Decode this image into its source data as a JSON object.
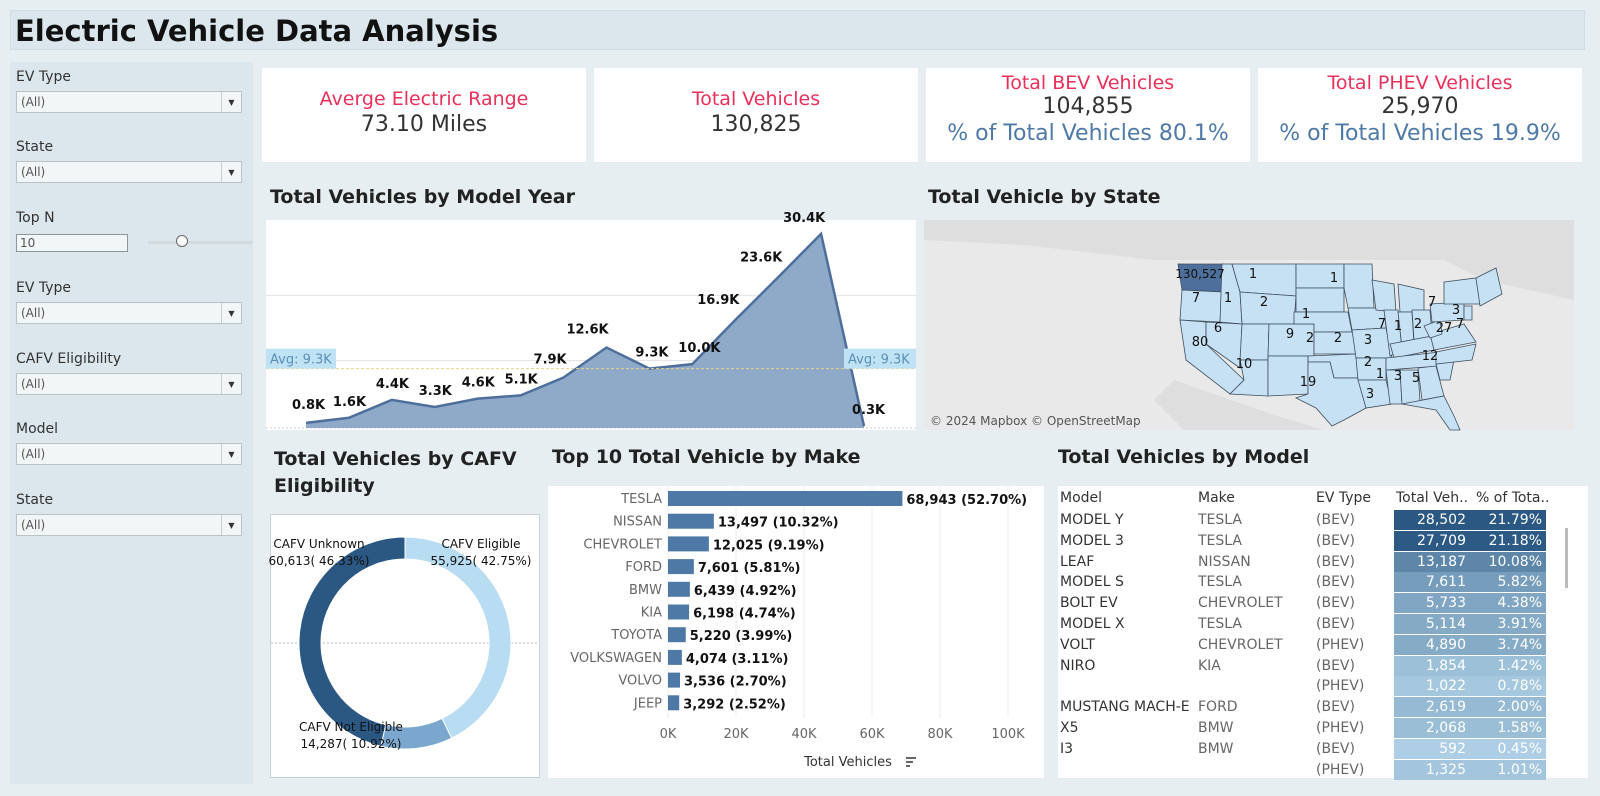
{
  "title": "Electric Vehicle Data Analysis",
  "filters": [
    {
      "label": "EV Type",
      "value": "(All)"
    },
    {
      "label": "State",
      "value": "(All)"
    },
    {
      "label": "Top N",
      "value": "10"
    },
    {
      "label": "EV Type",
      "value": "(All)"
    },
    {
      "label": "CAFV Eligibility",
      "value": "(All)"
    },
    {
      "label": "Model",
      "value": "(All)"
    },
    {
      "label": "State",
      "value": "(All)"
    }
  ],
  "kpis": {
    "range": {
      "title": "Averge Electric Range",
      "value": "73.10 Miles"
    },
    "total": {
      "title": "Total Vehicles",
      "value": "130,825"
    },
    "bev": {
      "title": "Total BEV Vehicles",
      "value": "104,855",
      "pct": "% of Total Vehicles 80.1%"
    },
    "phev": {
      "title": "Total PHEV Vehicles",
      "value": "25,970",
      "pct": "% of Total Vehicles 19.9%"
    }
  },
  "colors": {
    "accent_red": "#e8305a",
    "accent_blue": "#4e79a7",
    "area_fill": "#8faac8",
    "line": "#4e6f9c",
    "bar": "#4e79a7",
    "donut_dark": "#2b5783",
    "donut_mid": "#7ba7cf",
    "donut_light": "#b8dcf2",
    "map_state": "#c6e1f4",
    "map_wa": "#4e6f9c"
  },
  "model_year_title": "Total Vehicles by Model Year",
  "state_title": "Total Vehicle by State",
  "cafv_title_line1": "Total Vehicles by CAFV",
  "cafv_title_line2": "Eligibility",
  "make_title": "Top 10 Total Vehicle by Make",
  "model_title": "Total Vehicles by Model",
  "map_credit": "© 2024 Mapbox © OpenStreetMap",
  "chart_data": [
    {
      "type": "area",
      "title": "Total Vehicles by Model Year",
      "values": [
        800,
        1600,
        4400,
        3300,
        4600,
        5100,
        7900,
        12600,
        9300,
        10000,
        16900,
        23600,
        30400,
        300
      ],
      "data_labels": [
        "0.8K",
        "1.6K",
        "4.4K",
        "3.3K",
        "4.6K",
        "5.1K",
        "7.9K",
        "12.6K",
        "9.3K",
        "10.0K",
        "16.9K",
        "23.6K",
        "30.4K",
        "0.3K"
      ],
      "avg_value": 9300,
      "avg_label": "Avg: 9.3K",
      "ylim": [
        0,
        31000
      ]
    },
    {
      "type": "bar",
      "title": "Top 10 Total Vehicle by Make",
      "categories": [
        "TESLA",
        "NISSAN",
        "CHEVROLET",
        "FORD",
        "BMW",
        "KIA",
        "TOYOTA",
        "VOLKSWAGEN",
        "VOLVO",
        "JEEP"
      ],
      "values": [
        68943,
        13497,
        12025,
        7601,
        6439,
        6198,
        5220,
        4074,
        3536,
        3292
      ],
      "data_labels": [
        "68,943 (52.70%)",
        "13,497 (10.32%)",
        "12,025 (9.19%)",
        "7,601 (5.81%)",
        "6,439 (4.92%)",
        "6,198 (4.74%)",
        "5,220 (3.99%)",
        "4,074 (3.11%)",
        "3,536 (2.70%)",
        "3,292 (2.52%)"
      ],
      "xlabel": "Total Vehicles",
      "xticks": [
        "0K",
        "20K",
        "40K",
        "60K",
        "80K",
        "100K"
      ],
      "xlim": [
        0,
        100000
      ]
    },
    {
      "type": "pie",
      "title": "Total Vehicles by CAFV Eligibility",
      "slices": [
        {
          "name": "CAFV Eligible",
          "value": 55925,
          "label": "55,925( 42.75%)"
        },
        {
          "name": "CAFV Not Eligible",
          "value": 14287,
          "label": "14,287( 10.92%)"
        },
        {
          "name": "CAFV Unknown",
          "value": 60613,
          "label": "60,613( 46.33%)"
        }
      ]
    },
    {
      "type": "table",
      "title": "Total Vehicles by Model",
      "columns": [
        "Model",
        "Make",
        "EV Type",
        "Total Veh..",
        "% of Tota.."
      ],
      "rows": [
        {
          "model": "MODEL Y",
          "make": "TESLA",
          "ev": "(BEV)",
          "total": "28,502",
          "pct": "21.79%",
          "value": 28502
        },
        {
          "model": "MODEL 3",
          "make": "TESLA",
          "ev": "(BEV)",
          "total": "27,709",
          "pct": "21.18%",
          "value": 27709
        },
        {
          "model": "LEAF",
          "make": "NISSAN",
          "ev": "(BEV)",
          "total": "13,187",
          "pct": "10.08%",
          "value": 13187
        },
        {
          "model": "MODEL S",
          "make": "TESLA",
          "ev": "(BEV)",
          "total": "7,611",
          "pct": "5.82%",
          "value": 7611
        },
        {
          "model": "BOLT EV",
          "make": "CHEVROLET",
          "ev": "(BEV)",
          "total": "5,733",
          "pct": "4.38%",
          "value": 5733
        },
        {
          "model": "MODEL X",
          "make": "TESLA",
          "ev": "(BEV)",
          "total": "5,114",
          "pct": "3.91%",
          "value": 5114
        },
        {
          "model": "VOLT",
          "make": "CHEVROLET",
          "ev": "(PHEV)",
          "total": "4,890",
          "pct": "3.74%",
          "value": 4890
        },
        {
          "model": "NIRO",
          "make": "KIA",
          "ev": "(BEV)",
          "total": "1,854",
          "pct": "1.42%",
          "value": 1854
        },
        {
          "model": "",
          "make": "",
          "ev": "(PHEV)",
          "total": "1,022",
          "pct": "0.78%",
          "value": 1022
        },
        {
          "model": "MUSTANG MACH-E",
          "make": "FORD",
          "ev": "(BEV)",
          "total": "2,619",
          "pct": "2.00%",
          "value": 2619
        },
        {
          "model": "X5",
          "make": "BMW",
          "ev": "(PHEV)",
          "total": "2,068",
          "pct": "1.58%",
          "value": 2068
        },
        {
          "model": "I3",
          "make": "BMW",
          "ev": "(BEV)",
          "total": "592",
          "pct": "0.45%",
          "value": 592
        },
        {
          "model": "",
          "make": "",
          "ev": "(PHEV)",
          "total": "1,325",
          "pct": "1.01%",
          "value": 1325
        }
      ]
    },
    {
      "type": "map",
      "title": "Total Vehicle by State",
      "labels": [
        "130,527",
        "1",
        "7",
        "1",
        "2",
        "1",
        "1",
        "2",
        "9",
        "2",
        "3",
        "6",
        "80",
        "10",
        "19",
        "7",
        "1",
        "2",
        "27",
        "7",
        "3",
        "7",
        "2",
        "1",
        "3",
        "3",
        "5",
        "12"
      ]
    }
  ]
}
